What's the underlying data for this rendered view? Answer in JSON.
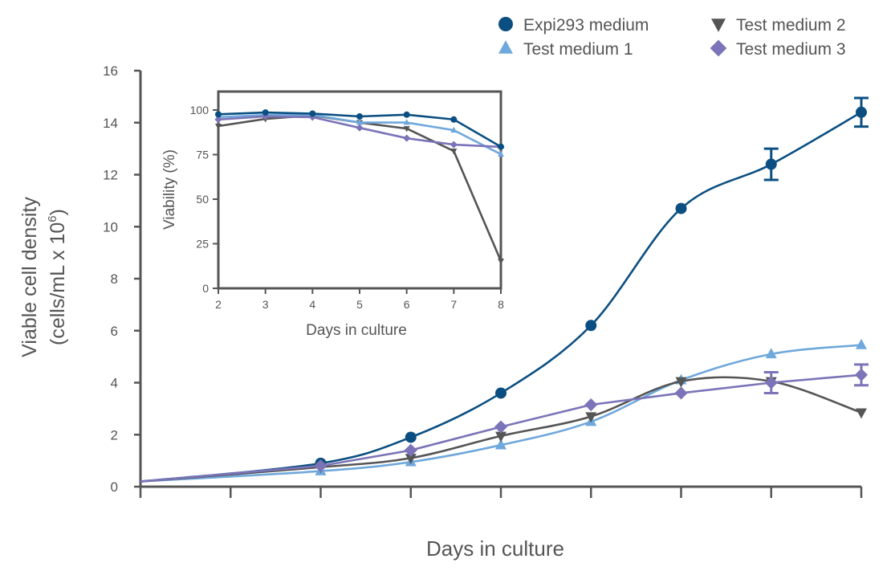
{
  "chart_data": [
    {
      "type": "line",
      "xlabel": "Days in culture",
      "ylabel": "Viable cell density",
      "ylabel_line2": "(cells/mL x 10",
      "ylabel_sup": "6",
      "ylabel_close": ")",
      "xlim": [
        0,
        8
      ],
      "ylim": [
        0,
        16
      ],
      "yticks": [
        "0",
        "2",
        "4",
        "6",
        "8",
        "10",
        "12",
        "14",
        "16"
      ],
      "x_ticks_count": 9,
      "grid": false,
      "legend_position": "top-right",
      "x": [
        0,
        2,
        3,
        4,
        5,
        6,
        7,
        8
      ],
      "series": [
        {
          "name": "Expi293 medium",
          "marker": "circle",
          "color": "#0b4f82",
          "smooth": true,
          "values": [
            0.2,
            0.9,
            1.9,
            3.6,
            6.2,
            10.7,
            12.4,
            14.4
          ],
          "error": [
            null,
            null,
            null,
            null,
            null,
            null,
            0.6,
            0.55
          ]
        },
        {
          "name": "Test medium 1",
          "marker": "triangle-up",
          "color": "#6fa8dc",
          "smooth": true,
          "values": [
            0.2,
            0.6,
            0.95,
            1.6,
            2.5,
            4.1,
            5.1,
            5.45
          ],
          "error": [
            null,
            null,
            null,
            null,
            null,
            null,
            null,
            null
          ]
        },
        {
          "name": "Test medium 2",
          "marker": "triangle-down",
          "color": "#555555",
          "smooth": true,
          "values": [
            0.2,
            0.75,
            1.1,
            1.95,
            2.7,
            4.05,
            4.05,
            2.85
          ],
          "error": [
            null,
            null,
            null,
            null,
            null,
            null,
            null,
            null
          ]
        },
        {
          "name": "Test medium 3",
          "marker": "diamond",
          "color": "#7b74b8",
          "smooth": false,
          "values": [
            0.2,
            0.8,
            1.4,
            2.3,
            3.15,
            3.6,
            4.0,
            4.3
          ],
          "error": [
            null,
            null,
            null,
            null,
            null,
            null,
            0.4,
            0.4
          ]
        }
      ]
    },
    {
      "type": "line",
      "xlabel": "Days in culture",
      "ylabel": "Viability (%)",
      "xlim": [
        2,
        8
      ],
      "ylim": [
        0,
        110
      ],
      "xticks": [
        "2",
        "3",
        "4",
        "5",
        "6",
        "7",
        "8"
      ],
      "yticks": [
        "0",
        "25",
        "50",
        "75",
        "100"
      ],
      "grid": false,
      "x": [
        2,
        3,
        4,
        5,
        6,
        7,
        8
      ],
      "series": [
        {
          "name": "Expi293 medium",
          "color": "#0b4f82",
          "values": [
            97.6,
            98.6,
            98,
            96.4,
            97.4,
            94.7,
            79.4
          ]
        },
        {
          "name": "Test medium 1",
          "color": "#6fa8dc",
          "values": [
            96,
            97.2,
            97.3,
            93,
            93,
            88.7,
            75.2
          ]
        },
        {
          "name": "Test medium 2",
          "color": "#555555",
          "values": [
            91,
            95,
            97,
            93,
            89.6,
            77,
            15.3
          ]
        },
        {
          "name": "Test medium 3",
          "color": "#7b74b8",
          "values": [
            94.7,
            96.4,
            96,
            90,
            84.2,
            80.6,
            79.3
          ]
        }
      ]
    }
  ]
}
